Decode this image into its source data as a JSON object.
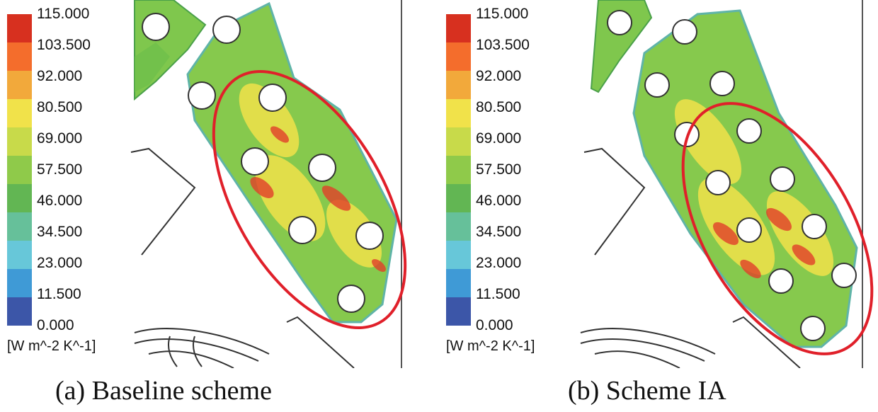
{
  "panels": [
    {
      "id": "a",
      "caption": "(a) Baseline scheme",
      "legend_ticks": [
        "115.000",
        "103.500",
        "92.000",
        "80.500",
        "69.000",
        "57.500",
        "46.000",
        "34.500",
        "23.000",
        "11.500",
        "0.000"
      ],
      "units": "[W m^-2 K^-1]"
    },
    {
      "id": "b",
      "caption": "(b) Scheme IA",
      "legend_ticks": [
        "115.000",
        "103.500",
        "92.000",
        "80.500",
        "69.000",
        "57.500",
        "46.000",
        "34.500",
        "23.000",
        "11.500",
        "0.000"
      ],
      "units": "[W m^-2 K^-1]"
    }
  ],
  "colors": {
    "scale": [
      "#d7301f",
      "#f46d2c",
      "#f2a93b",
      "#f1e24a",
      "#c8da4a",
      "#8fca4a",
      "#62b653",
      "#66c09a",
      "#67c7d9",
      "#3f9ad6",
      "#3c56a8"
    ],
    "highlight_ellipse": "#e0202a",
    "plate": "#7fc74d"
  }
}
